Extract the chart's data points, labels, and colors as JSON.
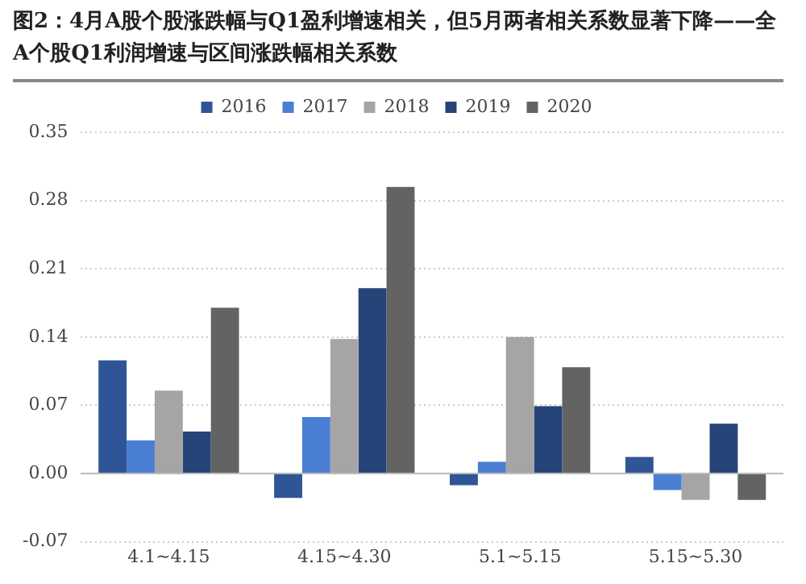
{
  "chart_data": {
    "type": "bar",
    "title": "图2：4月A股个股涨跌幅与Q1盈利增速相关，但5月两者相关系数显著下降——全A个股Q1利润增速与区间涨跌幅相关系数",
    "categories": [
      "4.1~4.15",
      "4.15~4.30",
      "5.1~5.15",
      "5.15~5.30"
    ],
    "series": [
      {
        "name": "2016",
        "color": "#2f5597",
        "values": [
          0.116,
          -0.025,
          -0.012,
          0.017
        ]
      },
      {
        "name": "2017",
        "color": "#4a7fd4",
        "values": [
          0.034,
          0.058,
          0.012,
          -0.017
        ]
      },
      {
        "name": "2018",
        "color": "#a5a5a5",
        "values": [
          0.085,
          0.138,
          0.14,
          -0.027
        ]
      },
      {
        "name": "2019",
        "color": "#264478",
        "values": [
          0.043,
          0.19,
          0.069,
          0.051
        ]
      },
      {
        "name": "2020",
        "color": "#636363",
        "values": [
          0.17,
          0.294,
          0.109,
          -0.027
        ]
      }
    ],
    "ylim": [
      -0.07,
      0.35
    ],
    "yticks": [
      {
        "value": -0.07,
        "label": "-0.07"
      },
      {
        "value": 0,
        "label": "0.00"
      },
      {
        "value": 0.07,
        "label": "0.07"
      },
      {
        "value": 0.14,
        "label": "0.14"
      },
      {
        "value": 0.21,
        "label": "0.21"
      },
      {
        "value": 0.28,
        "label": "0.28"
      },
      {
        "value": 0.35,
        "label": "0.35"
      }
    ],
    "grid": "y",
    "legend": "top"
  }
}
